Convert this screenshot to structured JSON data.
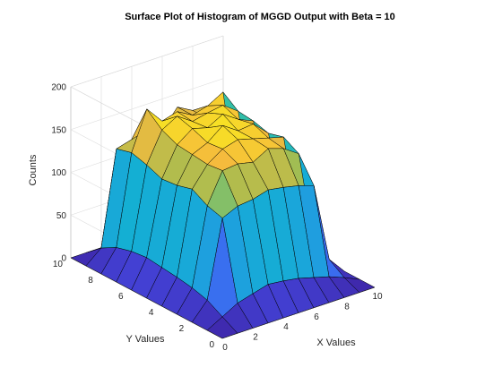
{
  "chart_data": {
    "type": "surface",
    "title": "Surface Plot of Histogram of MGGD Output with Beta = 10",
    "xlabel": "X Values",
    "ylabel": "Y Values",
    "zlabel": "Counts",
    "xlim": [
      0,
      10
    ],
    "ylim": [
      0,
      10
    ],
    "zlim": [
      0,
      200
    ],
    "x_ticks": [
      0,
      2,
      4,
      6,
      8,
      10
    ],
    "y_ticks": [
      0,
      2,
      4,
      6,
      8,
      10
    ],
    "z_ticks": [
      0,
      50,
      100,
      150,
      200
    ],
    "x_tick_labels": [
      "0",
      "2",
      "4",
      "6",
      "8",
      "10"
    ],
    "y_tick_labels": [
      "0",
      "2",
      "4",
      "6",
      "8",
      "10"
    ],
    "z_tick_labels": [
      "0",
      "50",
      "100",
      "150",
      "200"
    ],
    "grid": true,
    "colormap": "parula",
    "x": [
      0,
      1,
      2,
      3,
      4,
      5,
      6,
      7,
      8,
      9,
      10
    ],
    "y": [
      0,
      1,
      2,
      3,
      4,
      5,
      6,
      7,
      8,
      9,
      10
    ],
    "z": [
      [
        0,
        0,
        0,
        0,
        0,
        0,
        0,
        0,
        0,
        0,
        0
      ],
      [
        0,
        10,
        20,
        25,
        30,
        28,
        25,
        20,
        15,
        8,
        0
      ],
      [
        0,
        20,
        110,
        118,
        120,
        125,
        122,
        118,
        112,
        20,
        0
      ],
      [
        0,
        25,
        115,
        150,
        152,
        148,
        158,
        152,
        140,
        30,
        0
      ],
      [
        0,
        28,
        125,
        148,
        160,
        165,
        160,
        155,
        150,
        40,
        0
      ],
      [
        0,
        30,
        120,
        150,
        158,
        172,
        160,
        162,
        145,
        45,
        0
      ],
      [
        0,
        32,
        118,
        152,
        165,
        160,
        170,
        158,
        150,
        50,
        0
      ],
      [
        0,
        30,
        125,
        160,
        170,
        158,
        162,
        165,
        152,
        45,
        0
      ],
      [
        0,
        25,
        130,
        175,
        155,
        160,
        150,
        155,
        165,
        40,
        0
      ],
      [
        0,
        15,
        125,
        130,
        135,
        128,
        150,
        140,
        125,
        25,
        0
      ],
      [
        0,
        0,
        0,
        0,
        0,
        0,
        0,
        0,
        0,
        0,
        0
      ]
    ]
  }
}
